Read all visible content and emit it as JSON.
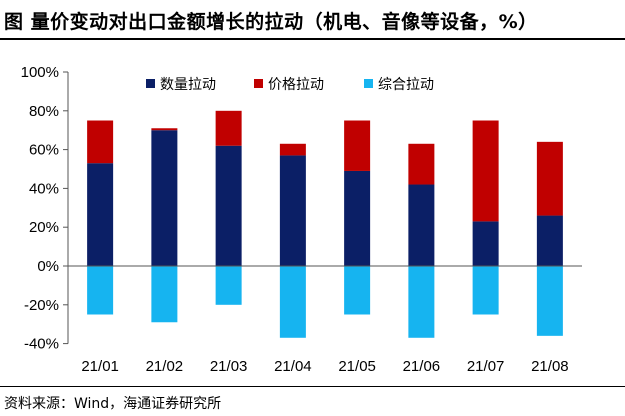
{
  "header": {
    "title": "图  量价变动对出口金额增长的拉动（机电、音像等设备，%）"
  },
  "footer": {
    "source": "资料来源：Wind，海通证券研究所"
  },
  "colors": {
    "quantity": "#0b1f66",
    "price": "#c00000",
    "composite": "#16b4f0"
  },
  "chart_data": {
    "type": "bar",
    "stacked": true,
    "title": "量价变动对出口金额增长的拉动（机电、音像等设备，%）",
    "categories": [
      "21/01",
      "21/02",
      "21/03",
      "21/04",
      "21/05",
      "21/06",
      "21/07",
      "21/08"
    ],
    "series": [
      {
        "name": "数量拉动",
        "values": [
          53,
          70,
          62,
          57,
          49,
          42,
          23,
          26
        ]
      },
      {
        "name": "价格拉动",
        "values": [
          22,
          1,
          18,
          6,
          26,
          21,
          52,
          38
        ]
      },
      {
        "name": "综合拉动",
        "values": [
          -25,
          -29,
          -20,
          -37,
          -25,
          -37,
          -25,
          -36
        ]
      }
    ],
    "ylim": [
      -40,
      100
    ],
    "yticks": [
      "-40%",
      "-20%",
      "0%",
      "20%",
      "40%",
      "60%",
      "80%",
      "100%"
    ],
    "legend": "top-center",
    "xlabel": "",
    "ylabel": ""
  }
}
